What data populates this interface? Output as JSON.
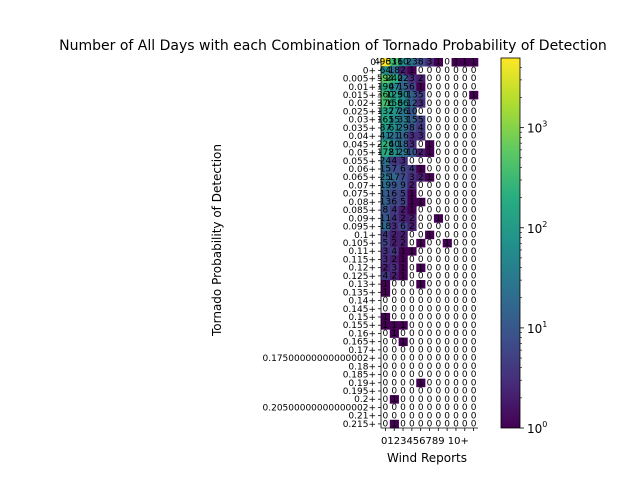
{
  "chart_data": {
    "type": "heatmap",
    "title": "Number of All Days with each Combination of Tornado Probability of Detection",
    "xlabel": "Wind Reports",
    "ylabel": "Tornado Probability of Detection",
    "x_categories": [
      "0",
      "1",
      "2",
      "3",
      "4",
      "5",
      "6",
      "7",
      "8",
      "9",
      "10+"
    ],
    "x_tick_text": "0123456789 10+",
    "y_categories": [
      "0",
      "0+",
      "0.005+",
      "0.01+",
      "0.015+",
      "0.02+",
      "0.025+",
      "0.03+",
      "0.035+",
      "0.04+",
      "0.045+",
      "0.05+",
      "0.055+",
      "0.06+",
      "0.065+",
      "0.07+",
      "0.075+",
      "0.08+",
      "0.085+",
      "0.09+",
      "0.095+",
      "0.1+",
      "0.105+",
      "0.11+",
      "0.115+",
      "0.12+",
      "0.125+",
      "0.13+",
      "0.135+",
      "0.14+",
      "0.145+",
      "0.15+",
      "0.155+",
      "0.16+",
      "0.165+",
      "0.17+",
      "0.17500000000000002+",
      "0.18+",
      "0.185+",
      "0.19+",
      "0.195+",
      "0.2+",
      "0.20500000000000002+",
      "0.21+",
      "0.215+"
    ],
    "values": [
      [
        4963,
        311,
        60,
        23,
        8,
        3,
        1,
        0,
        1,
        1,
        1
      ],
      [
        64,
        18,
        2,
        1,
        0,
        0,
        0,
        0,
        0,
        0,
        0
      ],
      [
        594,
        240,
        22,
        3,
        2,
        0,
        0,
        0,
        0,
        0,
        0
      ],
      [
        190,
        47,
        15,
        6,
        1,
        0,
        0,
        0,
        0,
        0,
        0
      ],
      [
        360,
        129,
        50,
        13,
        5,
        0,
        0,
        0,
        0,
        0,
        1
      ],
      [
        376,
        158,
        66,
        12,
        3,
        0,
        0,
        0,
        0,
        0,
        0
      ],
      [
        132,
        77,
        26,
        10,
        0,
        0,
        0,
        0,
        0,
        0,
        0
      ],
      [
        161,
        55,
        33,
        15,
        5,
        0,
        0,
        0,
        0,
        0,
        0
      ],
      [
        87,
        61,
        29,
        8,
        4,
        0,
        0,
        0,
        0,
        0,
        0
      ],
      [
        41,
        21,
        16,
        3,
        3,
        0,
        0,
        0,
        0,
        0,
        0
      ],
      [
        226,
        40,
        18,
        3,
        0,
        1,
        0,
        0,
        0,
        0,
        0
      ],
      [
        172,
        81,
        29,
        10,
        2,
        1,
        0,
        0,
        0,
        0,
        0
      ],
      [
        24,
        4,
        3,
        0,
        0,
        0,
        0,
        0,
        0,
        0,
        0
      ],
      [
        15,
        7,
        6,
        4,
        1,
        0,
        0,
        0,
        0,
        0,
        0
      ],
      [
        25,
        17,
        7,
        3,
        2,
        1,
        0,
        0,
        0,
        0,
        0
      ],
      [
        19,
        9,
        9,
        2,
        0,
        0,
        0,
        0,
        0,
        0,
        0
      ],
      [
        11,
        6,
        5,
        1,
        0,
        0,
        0,
        0,
        0,
        0,
        0
      ],
      [
        13,
        6,
        5,
        1,
        1,
        0,
        0,
        0,
        0,
        0,
        0
      ],
      [
        8,
        4,
        2,
        1,
        0,
        0,
        0,
        0,
        0,
        0,
        0
      ],
      [
        11,
        4,
        2,
        2,
        0,
        0,
        1,
        0,
        0,
        0,
        0
      ],
      [
        18,
        3,
        6,
        2,
        0,
        0,
        0,
        0,
        0,
        0,
        0
      ],
      [
        4,
        2,
        2,
        0,
        0,
        1,
        0,
        0,
        0,
        0,
        0
      ],
      [
        5,
        2,
        2,
        0,
        1,
        0,
        0,
        1,
        0,
        0,
        0
      ],
      [
        3,
        4,
        1,
        1,
        0,
        0,
        0,
        0,
        0,
        0,
        0
      ],
      [
        3,
        2,
        1,
        0,
        0,
        0,
        0,
        0,
        0,
        0,
        0
      ],
      [
        2,
        3,
        1,
        0,
        1,
        0,
        0,
        0,
        0,
        0,
        0
      ],
      [
        4,
        2,
        1,
        0,
        0,
        0,
        0,
        0,
        0,
        0,
        0
      ],
      [
        1,
        0,
        0,
        0,
        1,
        0,
        0,
        0,
        0,
        0,
        0
      ],
      [
        1,
        0,
        0,
        0,
        0,
        0,
        0,
        0,
        0,
        0,
        0
      ],
      [
        0,
        0,
        0,
        0,
        0,
        0,
        0,
        0,
        0,
        0,
        0
      ],
      [
        0,
        0,
        0,
        0,
        0,
        0,
        0,
        0,
        0,
        0,
        0
      ],
      [
        1,
        0,
        0,
        0,
        0,
        0,
        0,
        0,
        0,
        0,
        0
      ],
      [
        1,
        1,
        1,
        0,
        0,
        0,
        0,
        0,
        0,
        0,
        0
      ],
      [
        0,
        1,
        0,
        0,
        0,
        0,
        0,
        0,
        0,
        0,
        0
      ],
      [
        0,
        0,
        1,
        0,
        0,
        0,
        0,
        0,
        0,
        0,
        0
      ],
      [
        0,
        0,
        0,
        0,
        0,
        0,
        0,
        0,
        0,
        0,
        0
      ],
      [
        0,
        0,
        0,
        0,
        0,
        0,
        0,
        0,
        0,
        0,
        0
      ],
      [
        0,
        0,
        0,
        0,
        0,
        0,
        0,
        0,
        0,
        0,
        0
      ],
      [
        0,
        0,
        0,
        0,
        0,
        0,
        0,
        0,
        0,
        0,
        0
      ],
      [
        0,
        0,
        0,
        0,
        1,
        0,
        0,
        0,
        0,
        0,
        0
      ],
      [
        0,
        0,
        0,
        0,
        0,
        0,
        0,
        0,
        0,
        0,
        0
      ],
      [
        0,
        1,
        0,
        0,
        0,
        0,
        0,
        0,
        0,
        0,
        0
      ],
      [
        0,
        0,
        0,
        0,
        0,
        0,
        0,
        0,
        0,
        0,
        0
      ],
      [
        0,
        0,
        0,
        0,
        0,
        0,
        0,
        0,
        0,
        0,
        0
      ],
      [
        0,
        1,
        0,
        0,
        0,
        0,
        0,
        0,
        0,
        0,
        0
      ]
    ],
    "colorbar": {
      "scale": "log",
      "min": 1,
      "max": 4963,
      "ticks": [
        "10^0",
        "10^1",
        "10^2",
        "10^3"
      ],
      "colormap": "viridis"
    }
  }
}
